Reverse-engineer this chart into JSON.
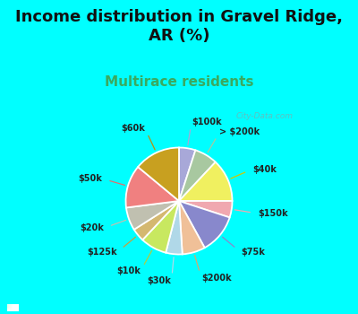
{
  "title": "Income distribution in Gravel Ridge,\nAR (%)",
  "subtitle": "Multirace residents",
  "title_fontsize": 13,
  "subtitle_fontsize": 11,
  "bg_color": "#00FFFF",
  "watermark": "City-Data.com",
  "labels": [
    "$100k",
    "> $200k",
    "$40k",
    "$150k",
    "$75k",
    "$200k",
    "$30k",
    "$10k",
    "$125k",
    "$20k",
    "$50k",
    "$60k"
  ],
  "values": [
    5,
    7,
    13,
    5,
    12,
    7,
    5,
    8,
    4,
    7,
    13,
    14
  ],
  "colors": [
    "#a8a8d8",
    "#a8c8a0",
    "#f0f060",
    "#f0a8b0",
    "#8888cc",
    "#f0c098",
    "#b0d8e8",
    "#c8e860",
    "#d4b870",
    "#c0c0b0",
    "#f08080",
    "#c8a020"
  ],
  "line_colors": [
    "#a8a8d8",
    "#a8c8a0",
    "#d4c800",
    "#f0a8b0",
    "#8888cc",
    "#d4a870",
    "#b0d8e8",
    "#b0cc40",
    "#c4a040",
    "#c0c0b0",
    "#e07070",
    "#b89010"
  ],
  "wedge_edge": "#ffffff",
  "label_fontsize": 7,
  "label_color": "#222222"
}
